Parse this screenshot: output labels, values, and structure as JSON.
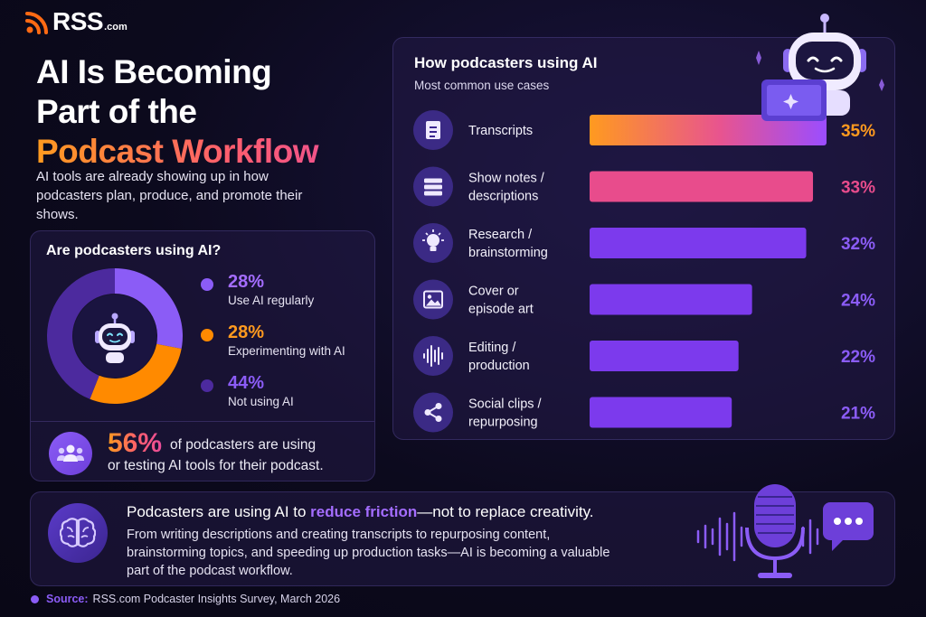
{
  "brand": {
    "name": "RSS",
    "suffix": ".com"
  },
  "headline": {
    "line1": "AI Is Becoming",
    "line2": "Part of the",
    "line3": "Podcast Workflow"
  },
  "intro": "AI tools are already showing up in how podcasters plan, produce, and promote their shows.",
  "colors": {
    "orange": "#ff9a1f",
    "pink": "#e84c8c",
    "purple": "#7c3aed",
    "dark_purple": "#3b2590",
    "accent_text": "#a46dff"
  },
  "chart_data": [
    {
      "type": "pie",
      "title": "Are podcasters using AI?",
      "series": [
        {
          "name": "Use AI regularly",
          "value": 28,
          "label": "28%",
          "color": "#8b5cf6"
        },
        {
          "name": "Experimenting with AI",
          "value": 28,
          "label": "28%",
          "color": "#ff8a00"
        },
        {
          "name": "Not using AI",
          "value": 44,
          "label": "44%",
          "color": "#4c2a9e"
        }
      ],
      "donut": true,
      "center_icon": "robot-icon"
    },
    {
      "type": "bar",
      "orientation": "horizontal",
      "title": "How podcasters using AI",
      "subtitle": "Most common use cases",
      "categories": [
        "Transcripts",
        "Show notes / descriptions",
        "Research / brainstorming",
        "Cover or episode art",
        "Editing / production",
        "Social clips / repurposing"
      ],
      "category_lines": [
        [
          "Transcripts"
        ],
        [
          "Show notes /",
          "descriptions"
        ],
        [
          "Research /",
          "brainstorming"
        ],
        [
          "Cover or",
          "episode art"
        ],
        [
          "Editing /",
          "production"
        ],
        [
          "Social clips /",
          "repurposing"
        ]
      ],
      "values": [
        35,
        33,
        32,
        24,
        22,
        21
      ],
      "value_labels": [
        "35%",
        "33%",
        "32%",
        "24%",
        "22%",
        "21%"
      ],
      "icons": [
        "document-icon",
        "list-icon",
        "lightbulb-icon",
        "image-icon",
        "waveform-icon",
        "share-icon"
      ],
      "bar_colors": [
        "gradient-orange-purple",
        "#e84c8c",
        "#7c3aed",
        "#7c3aed",
        "#7c3aed",
        "#7c3aed"
      ],
      "label_colors": [
        "#ff9a1f",
        "#e84c8c",
        "#8b5cf6",
        "#8b5cf6",
        "#8b5cf6",
        "#8b5cf6"
      ]
    }
  ],
  "stat": {
    "value": "56%",
    "text1": "of podcasters are using",
    "text2": "or testing AI tools for their podcast."
  },
  "bottom": {
    "lead_before": "Podcasters are using AI to ",
    "lead_highlight": "reduce friction",
    "lead_after": "—not to replace creativity.",
    "body": "From writing descriptions and creating transcripts to repurposing content, brainstorming topics, and speeding up production tasks—AI is becoming a valuable part of the podcast workflow."
  },
  "source": {
    "label": "Source:",
    "text": "RSS.com Podcaster Insights Survey, March 2026"
  }
}
